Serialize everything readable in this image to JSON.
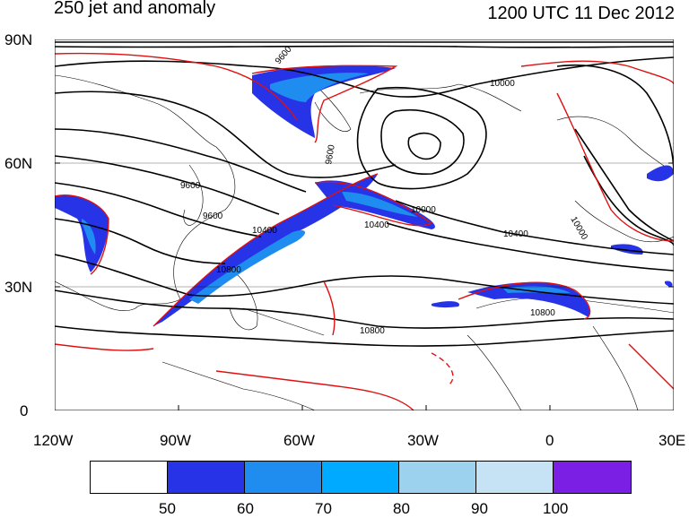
{
  "title_left": "250 jet and anomaly",
  "title_right": "1200 UTC 11 Dec 2012",
  "lat_labels": [
    "90N",
    "60N",
    "30N",
    "0"
  ],
  "lon_labels": [
    "120W",
    "90W",
    "60W",
    "30W",
    "0",
    "30E"
  ],
  "contour_labels": [
    "9600",
    "10000",
    "9600",
    "10400",
    "10000",
    "10400",
    "10400",
    "10800",
    "10800",
    "10800",
    "9600",
    "9600",
    "10000"
  ],
  "colorbar": {
    "ticks": [
      "50",
      "60",
      "70",
      "80",
      "90",
      "100"
    ],
    "colors": [
      "#ffffff",
      "#2633e6",
      "#1f8cf0",
      "#00aaff",
      "#9dd2ef",
      "#c6e3f5",
      "#7a1fe3"
    ]
  },
  "colors": {
    "height_contour": "#000000",
    "anomaly_contour": "#e01010",
    "coastline": "#000000"
  }
}
